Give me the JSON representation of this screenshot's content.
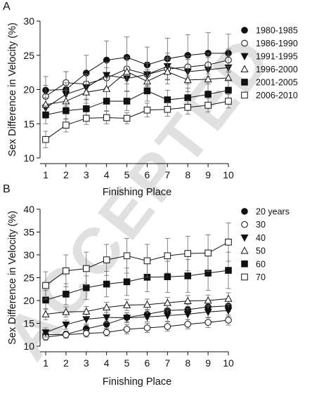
{
  "watermark": "ACCEPTED",
  "chart_data": [
    {
      "type": "line",
      "panel": "A",
      "xlabel": "Finishing Place",
      "ylabel": "Sex Difference in Velocity (%)",
      "xlim": [
        1,
        10
      ],
      "ylim": [
        10,
        30
      ],
      "x_ticks": [
        1,
        2,
        3,
        4,
        5,
        6,
        7,
        8,
        9,
        10
      ],
      "y_ticks": [
        10,
        15,
        20,
        25,
        30
      ],
      "grid": false,
      "legend_position": "right",
      "x": [
        1,
        2,
        3,
        4,
        5,
        6,
        7,
        8,
        9,
        10
      ],
      "series": [
        {
          "name": "1980-1985",
          "marker": "circle-filled",
          "values": [
            19.9,
            20.0,
            22.4,
            24.3,
            24.7,
            23.6,
            24.5,
            25.0,
            25.3,
            25.3
          ],
          "errors": [
            2.0,
            2.6,
            2.6,
            2.8,
            3.0,
            2.6,
            3.0,
            3.0,
            3.0,
            2.8
          ]
        },
        {
          "name": "1986-1990",
          "marker": "circle-open",
          "values": [
            19.0,
            21.0,
            20.8,
            21.7,
            23.0,
            22.2,
            23.0,
            23.3,
            23.6,
            24.3
          ],
          "errors": [
            1.6,
            1.6,
            1.5,
            1.5,
            1.7,
            1.6,
            1.6,
            1.6,
            1.7,
            1.6
          ]
        },
        {
          "name": "1991-1995",
          "marker": "triangle-down-filled",
          "values": [
            17.3,
            19.3,
            20.3,
            22.1,
            21.6,
            22.2,
            23.4,
            22.6,
            22.9,
            23.2
          ],
          "errors": [
            1.5,
            1.7,
            1.8,
            1.9,
            1.8,
            1.8,
            1.9,
            1.8,
            1.8,
            1.8
          ]
        },
        {
          "name": "1996-2000",
          "marker": "triangle-up-open",
          "values": [
            17.8,
            18.3,
            19.6,
            20.1,
            22.6,
            21.2,
            22.6,
            21.4,
            21.5,
            21.7
          ],
          "errors": [
            1.5,
            1.6,
            1.6,
            1.7,
            1.8,
            1.7,
            1.8,
            1.7,
            1.7,
            1.7
          ]
        },
        {
          "name": "2001-2005",
          "marker": "square-filled",
          "values": [
            16.3,
            16.9,
            17.2,
            18.3,
            18.3,
            19.8,
            18.5,
            18.8,
            19.3,
            19.9
          ],
          "errors": [
            1.3,
            1.3,
            1.4,
            1.4,
            1.4,
            1.5,
            1.4,
            1.4,
            1.5,
            1.5
          ]
        },
        {
          "name": "2006-2010",
          "marker": "square-open",
          "values": [
            12.7,
            14.8,
            15.8,
            15.9,
            15.8,
            17.0,
            17.1,
            17.4,
            17.7,
            18.3
          ],
          "errors": [
            1.2,
            1.0,
            0.9,
            0.9,
            0.8,
            1.0,
            1.0,
            1.0,
            1.0,
            1.0
          ]
        }
      ]
    },
    {
      "type": "line",
      "panel": "B",
      "xlabel": "Finishing Place",
      "ylabel": "Sex Difference in Velocity (%)",
      "xlim": [
        1,
        10
      ],
      "ylim": [
        10,
        40
      ],
      "x_ticks": [
        1,
        2,
        3,
        4,
        5,
        6,
        7,
        8,
        9,
        10
      ],
      "y_ticks": [
        10,
        15,
        20,
        25,
        30,
        35,
        40
      ],
      "grid": false,
      "legend_position": "right",
      "x": [
        1,
        2,
        3,
        4,
        5,
        6,
        7,
        8,
        9,
        10
      ],
      "series": [
        {
          "name": "20 years",
          "marker": "circle-filled",
          "values": [
            12.5,
            12.6,
            13.8,
            14.8,
            16.3,
            17.0,
            17.8,
            18.0,
            18.6,
            18.8
          ],
          "errors": [
            0.7,
            0.7,
            0.8,
            0.9,
            1.0,
            1.0,
            1.1,
            1.1,
            1.2,
            1.2
          ]
        },
        {
          "name": "30",
          "marker": "circle-open",
          "values": [
            12.0,
            12.5,
            12.8,
            13.0,
            13.7,
            14.0,
            14.3,
            14.8,
            15.2,
            15.7
          ],
          "errors": [
            0.7,
            0.8,
            0.8,
            0.8,
            1.0,
            1.0,
            1.0,
            1.0,
            1.1,
            1.1
          ]
        },
        {
          "name": "40",
          "marker": "triangle-down-filled",
          "values": [
            13.0,
            14.7,
            15.9,
            16.3,
            16.2,
            16.4,
            16.7,
            17.0,
            17.5,
            17.8
          ],
          "errors": [
            1.0,
            1.0,
            1.1,
            1.1,
            1.1,
            1.1,
            1.2,
            1.2,
            1.3,
            1.3
          ]
        },
        {
          "name": "50",
          "marker": "triangle-up-open",
          "values": [
            17.0,
            17.5,
            17.6,
            18.5,
            19.0,
            19.1,
            19.5,
            19.9,
            20.0,
            20.4
          ],
          "errors": [
            1.2,
            1.1,
            1.1,
            1.1,
            1.2,
            1.2,
            1.2,
            1.2,
            1.2,
            1.3
          ]
        },
        {
          "name": "60",
          "marker": "square-filled",
          "values": [
            20.1,
            21.4,
            22.8,
            23.6,
            24.1,
            25.1,
            25.2,
            25.4,
            26.0,
            26.6
          ],
          "errors": [
            2.1,
            2.3,
            2.6,
            2.8,
            3.0,
            3.2,
            3.4,
            3.6,
            3.8,
            4.0
          ]
        },
        {
          "name": "70",
          "marker": "square-open",
          "values": [
            23.3,
            26.5,
            27.0,
            28.9,
            29.8,
            28.7,
            29.8,
            30.3,
            30.4,
            32.8
          ],
          "errors": [
            3.0,
            3.5,
            3.6,
            3.4,
            3.8,
            3.6,
            3.8,
            3.8,
            4.0,
            4.2
          ]
        }
      ]
    }
  ]
}
